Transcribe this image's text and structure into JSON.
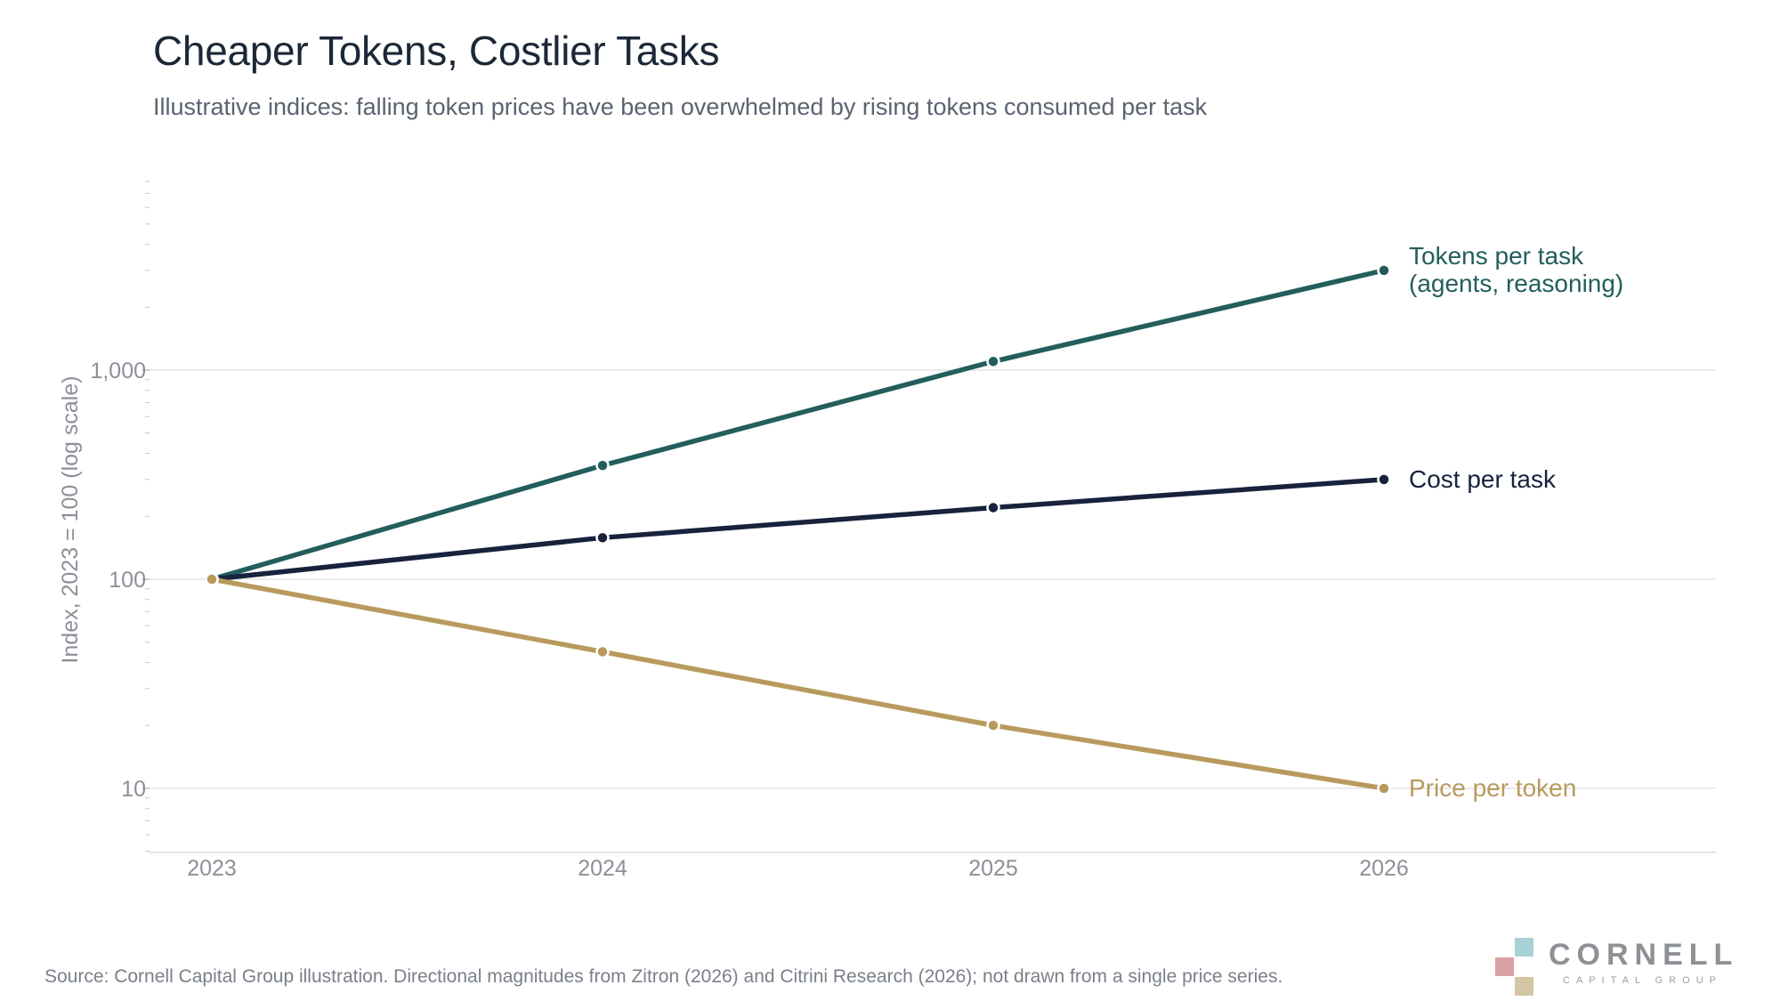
{
  "chart_data": {
    "type": "line",
    "title": "Cheaper Tokens, Costlier Tasks",
    "subtitle": "Illustrative indices: falling token prices have been overwhelmed by rising tokens consumed per task",
    "ylabel": "Index, 2023 = 100 (log scale)",
    "xlabel": "",
    "x": [
      "2023",
      "2024",
      "2025",
      "2026"
    ],
    "yscale": "log",
    "ylim": [
      5,
      10000
    ],
    "yticks": [
      10,
      100,
      1000
    ],
    "ytick_labels": [
      "10",
      "100",
      "1,000"
    ],
    "grid": true,
    "series": [
      {
        "name": "Tokens per task",
        "label_lines": [
          "Tokens per task",
          "(agents, reasoning)"
        ],
        "values": [
          100,
          350,
          1100,
          3000
        ],
        "color": "#235e5c"
      },
      {
        "name": "Cost per task",
        "label_lines": [
          "Cost per task"
        ],
        "values": [
          100,
          158,
          220,
          300
        ],
        "color": "#18223d"
      },
      {
        "name": "Price per token",
        "label_lines": [
          "Price per token"
        ],
        "values": [
          100,
          45,
          20,
          10
        ],
        "color": "#b89a5d"
      }
    ]
  },
  "footer": {
    "source": "Source: Cornell Capital Group illustration. Directional magnitudes from Zitron (2026) and Citrini Research (2026); not drawn from a single price series."
  },
  "logo": {
    "name": "CORNELL",
    "tagline": "CAPITAL GROUP",
    "colors": [
      "#a6d1d6",
      "#d9a1a3",
      "#d4c6a3"
    ]
  }
}
